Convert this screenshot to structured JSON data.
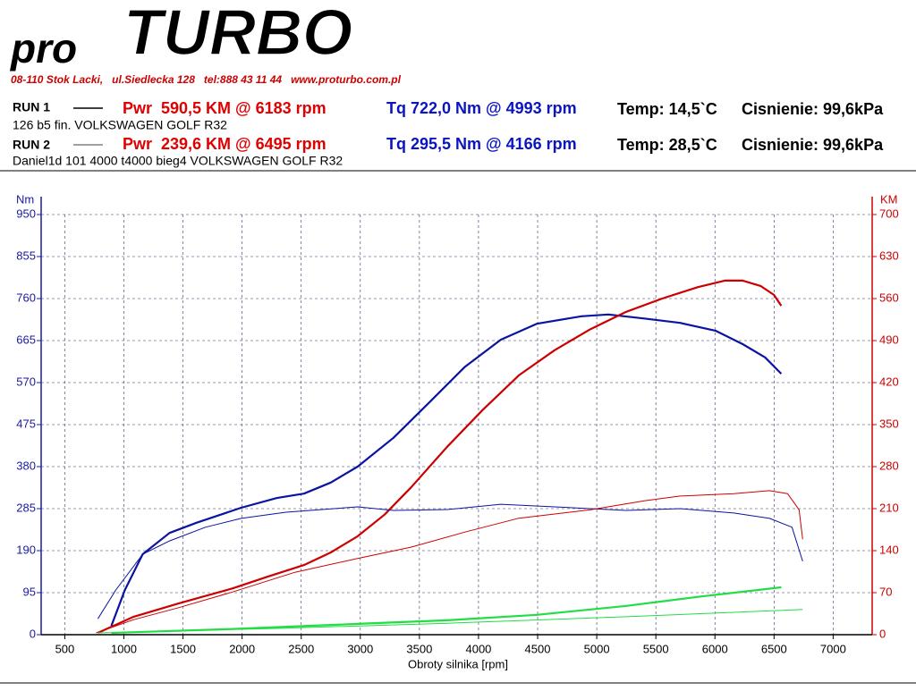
{
  "header": {
    "logo_pro": "pro",
    "logo_turbo": "TURBO",
    "address": "08-110 Stok Lacki,   ul.Siedlecka 128   tel:888 43 11 44   www.proturbo.com.pl",
    "runs": [
      {
        "label": "RUN 1",
        "power": "Pwr  590,5 KM @ 6183 rpm",
        "torque": "Tq 722,0 Nm @ 4993 rpm",
        "temp": "Temp: 14,5`C",
        "pressure": "Cisnienie: 99,6kPa",
        "description": "126 b5 fin. VOLKSWAGEN GOLF R32"
      },
      {
        "label": "RUN 2",
        "power": "Pwr  239,6 KM @ 6495 rpm",
        "torque": "Tq 295,5 Nm @ 4166 rpm",
        "temp": "Temp: 28,5`C",
        "pressure": "Cisnienie: 99,6kPa",
        "description": "Daniel1d 101 4000 t4000 bieg4 VOLKSWAGEN GOLF R32"
      }
    ]
  },
  "chart_data": {
    "type": "line",
    "y_label": "Nm",
    "y2_label": "KM",
    "x_label": "Obroty silnika [rpm]",
    "xlim": [
      300,
      7330
    ],
    "xticks": [
      500,
      1000,
      1500,
      2000,
      2500,
      3000,
      3500,
      4000,
      4500,
      5000,
      5500,
      6000,
      6500,
      7000
    ],
    "ylim": [
      0,
      950
    ],
    "yticks": [
      0,
      95,
      190,
      285,
      380,
      475,
      570,
      665,
      760,
      855,
      950
    ],
    "y2lim": [
      0,
      700
    ],
    "y2ticks": [
      0,
      70,
      140,
      210,
      280,
      350,
      420,
      490,
      560,
      630,
      700
    ],
    "grid": true,
    "y_color": "#1a1aa0",
    "y2_color": "#cc0000",
    "series": [
      {
        "color": "#0a14a0",
        "width": 2.2,
        "x": [
          894,
          1008,
          1159,
          1386,
          1614,
          1992,
          2295,
          2523,
          2750,
          2977,
          3280,
          3583,
          3886,
          4189,
          4492,
          4871,
          5098,
          5402,
          5705,
          6008,
          6235,
          6424,
          6561
        ],
        "values": [
          20,
          101,
          182,
          230,
          253,
          287,
          309,
          319,
          344,
          380,
          445,
          525,
          606,
          667,
          703,
          720,
          724,
          715,
          705,
          687,
          657,
          627,
          590
        ]
      },
      {
        "color": "#cc0000",
        "width": 2.2,
        "axis": "y2",
        "x": [
          780,
          1083,
          1462,
          1917,
          2220,
          2523,
          2750,
          2977,
          3205,
          3432,
          3735,
          4038,
          4341,
          4644,
          4947,
          5250,
          5553,
          5856,
          6083,
          6235,
          6386,
          6500,
          6561
        ],
        "values": [
          3,
          30,
          52,
          77,
          97,
          116,
          137,
          164,
          200,
          246,
          313,
          375,
          432,
          474,
          509,
          538,
          560,
          579,
          590,
          590,
          581,
          566,
          548
        ]
      },
      {
        "color": "#0a14a0",
        "width": 1,
        "x": [
          780,
          932,
          1159,
          1386,
          1689,
          1992,
          2371,
          2977,
          3280,
          3735,
          4189,
          4644,
          5250,
          5705,
          6159,
          6462,
          6652,
          6742
        ],
        "values": [
          36,
          101,
          182,
          212,
          243,
          263,
          277,
          289,
          281,
          283,
          295,
          289,
          281,
          285,
          275,
          263,
          243,
          166
        ]
      },
      {
        "color": "#cc0000",
        "width": 1,
        "axis": "y2",
        "x": [
          765,
          1083,
          1462,
          1917,
          2447,
          2977,
          3432,
          3886,
          4341,
          4947,
          5402,
          5705,
          6159,
          6462,
          6614,
          6712,
          6742
        ],
        "values": [
          3,
          25,
          45,
          71,
          104,
          127,
          146,
          171,
          194,
          208,
          223,
          231,
          235,
          240,
          235,
          208,
          159
        ]
      },
      {
        "color": "#22dd44",
        "width": 2.2,
        "axis": "y2",
        "x": [
          894,
          1841,
          2977,
          3735,
          4492,
          5250,
          5856,
          6561
        ],
        "values": [
          3,
          9,
          18,
          24,
          33,
          48,
          63,
          79
        ]
      },
      {
        "color": "#22dd44",
        "width": 1,
        "axis": "y2",
        "x": [
          780,
          2220,
          3735,
          5250,
          6742
        ],
        "values": [
          3,
          10,
          19,
          30,
          42
        ]
      }
    ]
  }
}
